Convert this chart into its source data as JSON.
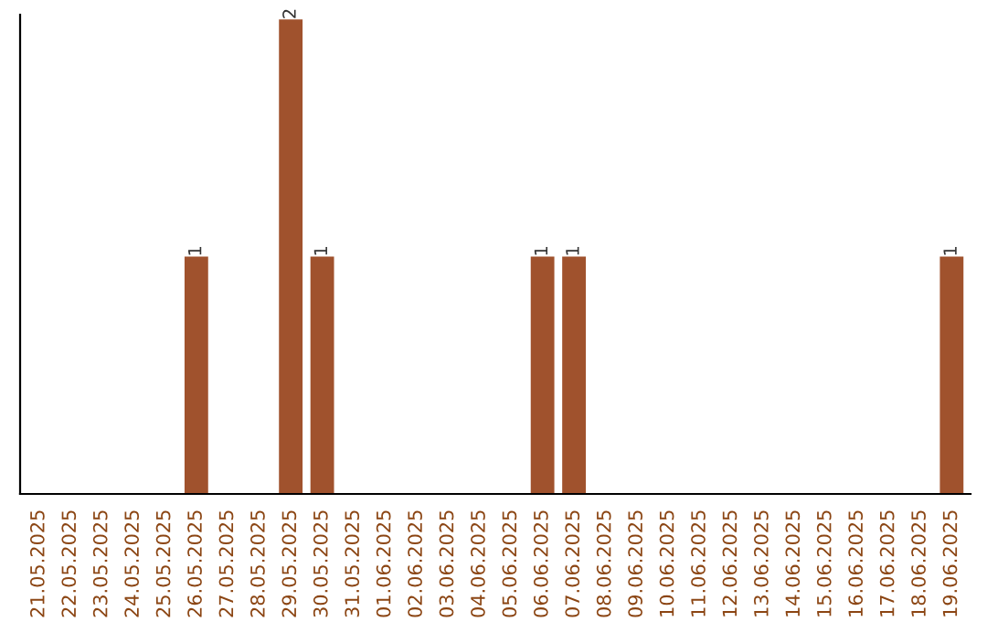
{
  "chart_data": {
    "type": "bar",
    "categories": [
      "21.05.2025",
      "22.05.2025",
      "23.05.2025",
      "24.05.2025",
      "25.05.2025",
      "26.05.2025",
      "27.05.2025",
      "28.05.2025",
      "29.05.2025",
      "30.05.2025",
      "31.05.2025",
      "01.06.2025",
      "02.06.2025",
      "03.06.2025",
      "04.06.2025",
      "05.06.2025",
      "06.06.2025",
      "07.06.2025",
      "08.06.2025",
      "09.06.2025",
      "10.06.2025",
      "11.06.2025",
      "12.06.2025",
      "13.06.2025",
      "14.06.2025",
      "15.06.2025",
      "16.06.2025",
      "17.06.2025",
      "18.06.2025",
      "19.06.2025"
    ],
    "values": [
      0,
      0,
      0,
      0,
      0,
      1,
      0,
      0,
      2,
      1,
      0,
      0,
      0,
      0,
      0,
      0,
      1,
      1,
      0,
      0,
      0,
      0,
      0,
      0,
      0,
      0,
      0,
      0,
      0,
      1
    ],
    "value_labels": [
      null,
      null,
      null,
      null,
      null,
      "1",
      null,
      null,
      "2",
      "1",
      null,
      null,
      null,
      null,
      null,
      null,
      "1",
      "1",
      null,
      null,
      null,
      null,
      null,
      null,
      null,
      null,
      null,
      null,
      null,
      "1"
    ],
    "color": "#a0522d",
    "grid": false,
    "legend": false
  }
}
